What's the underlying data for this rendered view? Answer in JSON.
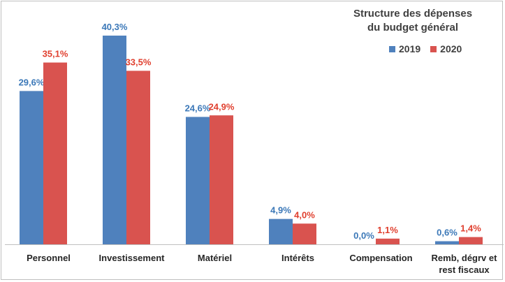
{
  "chart_data": {
    "type": "bar",
    "title_lines": [
      "Structure des dépenses",
      "du budget général"
    ],
    "categories": [
      [
        "Personnel"
      ],
      [
        "Investissement"
      ],
      [
        "Matériel"
      ],
      [
        "Intérêts"
      ],
      [
        "Compensation"
      ],
      [
        "Remb, dégrv et",
        "rest fiscaux"
      ]
    ],
    "series": [
      {
        "name": "2019",
        "color": "#4f81bd",
        "label_color": "#3b78b8",
        "values": [
          29.6,
          40.3,
          24.6,
          4.9,
          0.0,
          0.6
        ],
        "labels": [
          "29,6%",
          "40,3%",
          "24,6%",
          "4,9%",
          "0,0%",
          "0,6%"
        ]
      },
      {
        "name": "2020",
        "color": "#d9534f",
        "label_color": "#e0402f",
        "values": [
          35.1,
          33.5,
          24.9,
          4.0,
          1.1,
          1.4
        ],
        "labels": [
          "35,1%",
          "33,5%",
          "24,9%",
          "4,0%",
          "1,1%",
          "1,4%"
        ]
      }
    ],
    "xlabel": "",
    "ylabel": "",
    "ylim": [
      0,
      40.3
    ],
    "legend": "top-right",
    "grid": false
  }
}
